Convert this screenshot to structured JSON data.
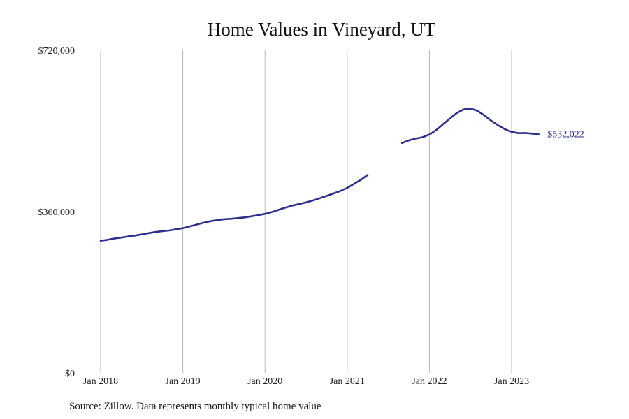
{
  "colors": {
    "line": "#2e2f8c",
    "grid": "#b9b9b9",
    "text": "#111111"
  },
  "chart_data": {
    "type": "line",
    "title": "Home Values in Vineyard, UT",
    "source": "Source: Zillow. Data represents monthly typical home value",
    "xlabel": "",
    "ylabel": "",
    "ylim": [
      0,
      720000
    ],
    "y_ticks": [
      0,
      360000,
      720000
    ],
    "y_tick_labels": [
      "$0",
      "$360,000",
      "$720,000"
    ],
    "x_range": [
      "2018-01",
      "2023-06"
    ],
    "x_ticks": [
      "2018-01",
      "2019-01",
      "2020-01",
      "2021-01",
      "2022-01",
      "2023-01"
    ],
    "x_tick_labels": [
      "Jan 2018",
      "Jan 2019",
      "Jan 2020",
      "Jan 2021",
      "Jan 2022",
      "Jan 2023"
    ],
    "grid": "vertical",
    "end_label": "$532,022",
    "series": [
      {
        "segments": [
          [
            [
              "2018-01",
              295000
            ],
            [
              "2018-02",
              297000
            ],
            [
              "2018-03",
              300000
            ],
            [
              "2018-04",
              302000
            ],
            [
              "2018-05",
              304500
            ],
            [
              "2018-06",
              306500
            ],
            [
              "2018-07",
              309000
            ],
            [
              "2018-08",
              312000
            ],
            [
              "2018-09",
              314500
            ],
            [
              "2018-10",
              316500
            ],
            [
              "2018-11",
              318000
            ],
            [
              "2018-12",
              320500
            ],
            [
              "2019-01",
              323000
            ],
            [
              "2019-02",
              327000
            ],
            [
              "2019-03",
              331000
            ],
            [
              "2019-04",
              335000
            ],
            [
              "2019-05",
              338500
            ],
            [
              "2019-06",
              341000
            ],
            [
              "2019-07",
              343000
            ],
            [
              "2019-08",
              344000
            ],
            [
              "2019-09",
              345500
            ],
            [
              "2019-10",
              347000
            ],
            [
              "2019-11",
              349500
            ],
            [
              "2019-12",
              352000
            ],
            [
              "2020-01",
              355000
            ],
            [
              "2020-02",
              359000
            ],
            [
              "2020-03",
              364000
            ],
            [
              "2020-04",
              369000
            ],
            [
              "2020-05",
              373500
            ],
            [
              "2020-06",
              377000
            ],
            [
              "2020-07",
              380500
            ],
            [
              "2020-08",
              385000
            ],
            [
              "2020-09",
              390000
            ],
            [
              "2020-10",
              395000
            ],
            [
              "2020-11",
              400500
            ],
            [
              "2020-12",
              406000
            ],
            [
              "2021-01",
              413000
            ],
            [
              "2021-02",
              422000
            ],
            [
              "2021-03",
              431000
            ],
            [
              "2021-04",
              442000
            ]
          ],
          [
            [
              "2021-09",
              513000
            ],
            [
              "2021-10",
              519000
            ],
            [
              "2021-11",
              523000
            ],
            [
              "2021-12",
              526000
            ],
            [
              "2022-01",
              532000
            ],
            [
              "2022-02",
              542000
            ],
            [
              "2022-03",
              555000
            ],
            [
              "2022-04",
              568000
            ],
            [
              "2022-05",
              580000
            ],
            [
              "2022-06",
              588000
            ],
            [
              "2022-07",
              590000
            ],
            [
              "2022-08",
              585000
            ],
            [
              "2022-09",
              575000
            ],
            [
              "2022-10",
              563000
            ],
            [
              "2022-11",
              553000
            ],
            [
              "2022-12",
              544000
            ],
            [
              "2023-01",
              538000
            ],
            [
              "2023-02",
              535000
            ],
            [
              "2023-03",
              535500
            ],
            [
              "2023-04",
              534000
            ],
            [
              "2023-05",
              532022
            ]
          ]
        ]
      }
    ]
  }
}
